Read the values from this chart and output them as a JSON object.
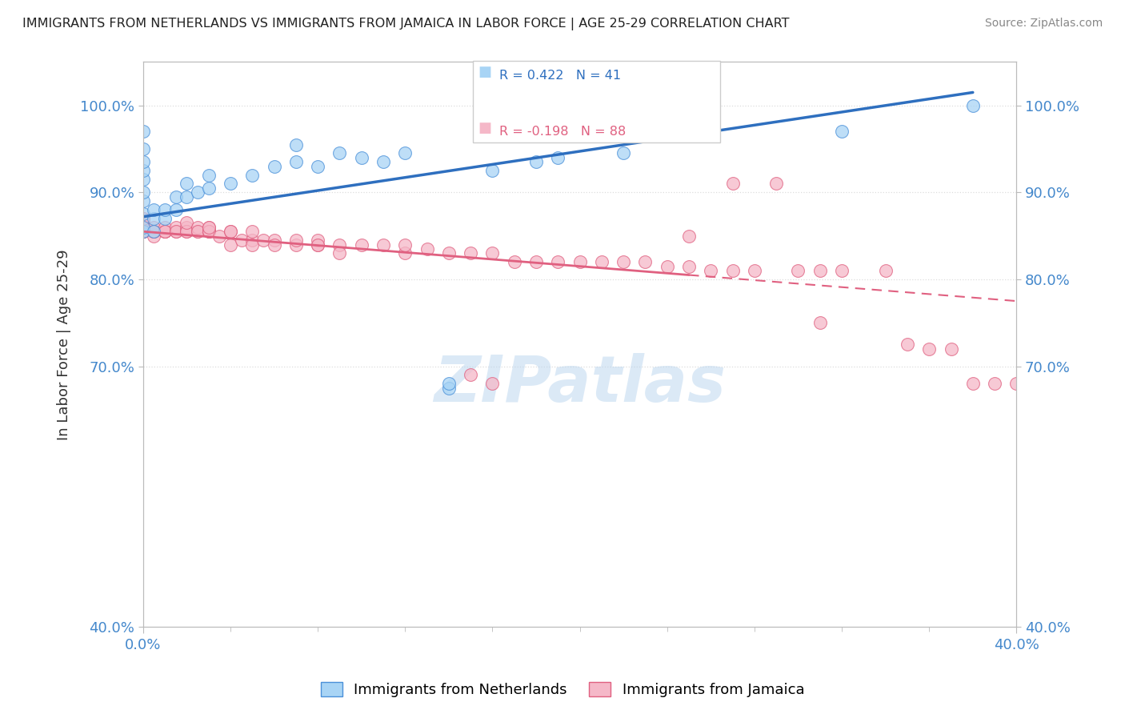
{
  "title": "IMMIGRANTS FROM NETHERLANDS VS IMMIGRANTS FROM JAMAICA IN LABOR FORCE | AGE 25-29 CORRELATION CHART",
  "source": "Source: ZipAtlas.com",
  "ylabel": "In Labor Force | Age 25-29",
  "xlim": [
    0.0,
    0.4
  ],
  "ylim": [
    0.4,
    1.05
  ],
  "ytick_values": [
    0.4,
    0.7,
    0.8,
    0.9,
    1.0
  ],
  "ytick_labels": [
    "40.0%",
    "70.0%",
    "80.0%",
    "90.0%",
    "100.0%"
  ],
  "xtick_values": [
    0.0,
    0.4
  ],
  "xtick_labels": [
    "0.0%",
    "40.0%"
  ],
  "r_netherlands": 0.422,
  "n_netherlands": 41,
  "r_jamaica": -0.198,
  "n_jamaica": 88,
  "netherlands_color": "#A8D4F5",
  "netherlands_edge_color": "#4A90D9",
  "jamaica_color": "#F5B8C8",
  "jamaica_edge_color": "#E06080",
  "netherlands_line_color": "#2E6FBF",
  "jamaica_line_color": "#E06080",
  "neth_line_x0": 0.0,
  "neth_line_y0": 0.872,
  "neth_line_x1": 0.38,
  "neth_line_y1": 1.015,
  "jam_line_x0": 0.0,
  "jam_line_y0": 0.855,
  "jam_line_x1": 0.4,
  "jam_line_y1": 0.775,
  "neth_x": [
    0.0,
    0.0,
    0.0,
    0.0,
    0.0,
    0.0,
    0.0,
    0.0,
    0.0,
    0.0,
    0.005,
    0.005,
    0.005,
    0.01,
    0.01,
    0.015,
    0.015,
    0.02,
    0.02,
    0.025,
    0.03,
    0.03,
    0.04,
    0.05,
    0.06,
    0.07,
    0.07,
    0.08,
    0.09,
    0.1,
    0.11,
    0.12,
    0.14,
    0.14,
    0.16,
    0.18,
    0.19,
    0.22,
    0.26,
    0.32,
    0.38
  ],
  "neth_y": [
    0.855,
    0.86,
    0.875,
    0.89,
    0.9,
    0.915,
    0.925,
    0.935,
    0.95,
    0.97,
    0.855,
    0.87,
    0.88,
    0.87,
    0.88,
    0.88,
    0.895,
    0.895,
    0.91,
    0.9,
    0.905,
    0.92,
    0.91,
    0.92,
    0.93,
    0.935,
    0.955,
    0.93,
    0.945,
    0.94,
    0.935,
    0.945,
    0.675,
    0.68,
    0.925,
    0.935,
    0.94,
    0.945,
    0.965,
    0.97,
    1.0
  ],
  "jam_x": [
    0.0,
    0.0,
    0.0,
    0.0,
    0.0,
    0.0,
    0.0,
    0.0,
    0.0,
    0.0,
    0.005,
    0.005,
    0.005,
    0.005,
    0.01,
    0.01,
    0.01,
    0.01,
    0.01,
    0.015,
    0.015,
    0.015,
    0.02,
    0.02,
    0.02,
    0.02,
    0.025,
    0.025,
    0.025,
    0.03,
    0.03,
    0.03,
    0.03,
    0.03,
    0.035,
    0.04,
    0.04,
    0.04,
    0.045,
    0.05,
    0.05,
    0.05,
    0.055,
    0.06,
    0.06,
    0.07,
    0.07,
    0.08,
    0.08,
    0.08,
    0.09,
    0.09,
    0.1,
    0.11,
    0.12,
    0.12,
    0.13,
    0.14,
    0.15,
    0.16,
    0.17,
    0.18,
    0.19,
    0.2,
    0.21,
    0.22,
    0.23,
    0.24,
    0.25,
    0.26,
    0.27,
    0.28,
    0.3,
    0.31,
    0.32,
    0.34,
    0.35,
    0.36,
    0.37,
    0.38,
    0.39,
    0.4,
    0.29,
    0.27,
    0.25,
    0.31,
    0.15,
    0.16
  ],
  "jam_y": [
    0.855,
    0.86,
    0.865,
    0.87,
    0.855,
    0.86,
    0.855,
    0.855,
    0.855,
    0.87,
    0.85,
    0.855,
    0.86,
    0.855,
    0.855,
    0.855,
    0.86,
    0.855,
    0.855,
    0.855,
    0.86,
    0.855,
    0.86,
    0.855,
    0.855,
    0.865,
    0.855,
    0.86,
    0.855,
    0.855,
    0.86,
    0.855,
    0.855,
    0.86,
    0.85,
    0.855,
    0.84,
    0.855,
    0.845,
    0.845,
    0.84,
    0.855,
    0.845,
    0.845,
    0.84,
    0.84,
    0.845,
    0.84,
    0.845,
    0.84,
    0.84,
    0.83,
    0.84,
    0.84,
    0.83,
    0.84,
    0.835,
    0.83,
    0.83,
    0.83,
    0.82,
    0.82,
    0.82,
    0.82,
    0.82,
    0.82,
    0.82,
    0.815,
    0.815,
    0.81,
    0.81,
    0.81,
    0.81,
    0.81,
    0.81,
    0.81,
    0.725,
    0.72,
    0.72,
    0.68,
    0.68,
    0.68,
    0.91,
    0.91,
    0.85,
    0.75,
    0.69,
    0.68
  ],
  "watermark_text": "ZIPatlas",
  "background_color": "#FFFFFF",
  "grid_color": "#DDDDDD"
}
